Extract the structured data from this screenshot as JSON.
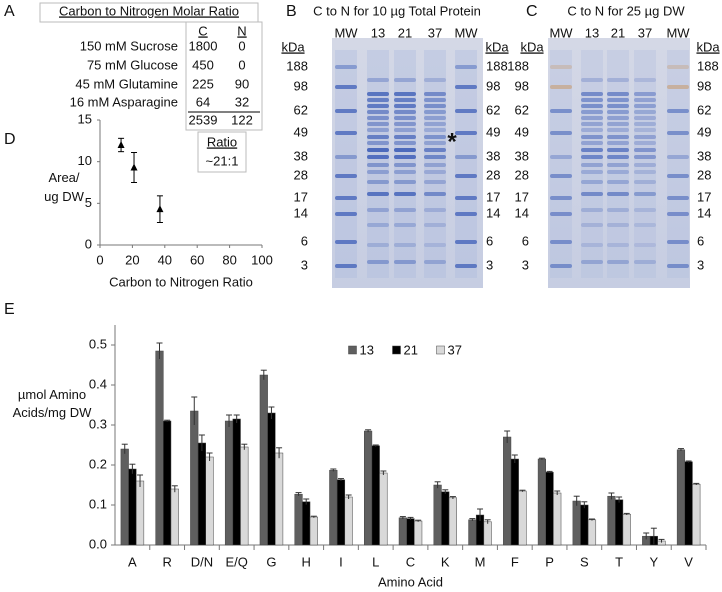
{
  "panel_labels": [
    "A",
    "B",
    "C",
    "D",
    "E"
  ],
  "table": {
    "title": "Carbon to Nitrogen Molar Ratio",
    "columns": [
      "C",
      "N"
    ],
    "rows": [
      [
        "150 mM Sucrose",
        1800,
        0
      ],
      [
        "75 mM Glucose",
        450,
        0
      ],
      [
        "45 mM Glutamine",
        225,
        90
      ],
      [
        "16 mM Asparagine",
        64,
        32
      ]
    ],
    "totals": [
      2539,
      122
    ],
    "ratio_label": "Ratio",
    "ratio": "~21:1"
  },
  "gels": [
    {
      "title": "C to N for 10 µg Total Protein",
      "lanes": [
        "MW",
        "13",
        "21",
        "37",
        "MW"
      ],
      "unit": "kDa",
      "markers": [
        188,
        98,
        62,
        49,
        38,
        28,
        17,
        14,
        6,
        3
      ],
      "annotation": "*"
    },
    {
      "title": "C to N for 25 µg DW",
      "lanes": [
        "MW",
        "13",
        "21",
        "37",
        "MW"
      ],
      "unit": "kDa",
      "markers": [
        188,
        98,
        62,
        49,
        38,
        28,
        17,
        14,
        6,
        3
      ]
    }
  ],
  "chart_data": [
    {
      "type": "scatter",
      "x_label": "Carbon to Nitrogen Ratio",
      "y_label": "Area/ ug DW",
      "x": [
        13,
        21,
        37
      ],
      "series": [
        {
          "color": "#000000",
          "values": [
            12,
            9.3,
            4.3
          ],
          "errors": [
            0.8,
            1.8,
            1.6
          ]
        }
      ],
      "xlim": [
        0,
        100
      ],
      "xticks": [
        0,
        20,
        40,
        60,
        80,
        100
      ],
      "ylim": [
        0,
        15
      ],
      "yticks": [
        0,
        5,
        10,
        15
      ],
      "grid": false
    },
    {
      "type": "bar",
      "x_label": "Amino Acid",
      "y_label": "µmol Amino Acids/mg DW",
      "categories": [
        "A",
        "R",
        "D/N",
        "E/Q",
        "G",
        "H",
        "I",
        "L",
        "C",
        "K",
        "M",
        "F",
        "P",
        "S",
        "T",
        "Y",
        "V"
      ],
      "series": [
        {
          "name": "13",
          "color": "#5f5f5f",
          "values": [
            0.24,
            0.485,
            0.335,
            0.31,
            0.425,
            0.127,
            0.187,
            0.285,
            0.068,
            0.15,
            0.063,
            0.27,
            0.215,
            0.11,
            0.122,
            0.022,
            0.238
          ],
          "errors": [
            0.012,
            0.02,
            0.035,
            0.015,
            0.012,
            0.004,
            0.003,
            0.003,
            0.003,
            0.008,
            0.003,
            0.015,
            0.002,
            0.012,
            0.008,
            0.008,
            0.003
          ]
        },
        {
          "name": "21",
          "color": "#000000",
          "values": [
            0.19,
            0.31,
            0.255,
            0.315,
            0.33,
            0.108,
            0.163,
            0.248,
            0.066,
            0.133,
            0.075,
            0.215,
            0.182,
            0.1,
            0.113,
            0.022,
            0.208
          ],
          "errors": [
            0.012,
            0.002,
            0.02,
            0.01,
            0.015,
            0.007,
            0.003,
            0.002,
            0.003,
            0.005,
            0.015,
            0.01,
            0.002,
            0.008,
            0.007,
            0.02,
            0.002
          ]
        },
        {
          "name": "37",
          "color": "#d9d9d9",
          "values": [
            0.16,
            0.14,
            0.22,
            0.245,
            0.23,
            0.07,
            0.12,
            0.18,
            0.06,
            0.118,
            0.058,
            0.135,
            0.13,
            0.063,
            0.077,
            0.01,
            0.152
          ],
          "errors": [
            0.015,
            0.008,
            0.01,
            0.007,
            0.013,
            0.002,
            0.005,
            0.005,
            0.002,
            0.003,
            0.005,
            0.002,
            0.005,
            0.002,
            0.002,
            0.004,
            0.002
          ]
        }
      ],
      "ylim": [
        0,
        0.55
      ],
      "yticks": [
        {
          "value": 0,
          "label": "0.0"
        },
        {
          "value": 0.1,
          "label": "0.1"
        },
        {
          "value": 0.2,
          "label": "0.2"
        },
        {
          "value": 0.3,
          "label": "0.3"
        },
        {
          "value": 0.4,
          "label": "0.4"
        },
        {
          "value": 0.5,
          "label": "0.5"
        }
      ],
      "legend": "top",
      "grid": false
    }
  ]
}
